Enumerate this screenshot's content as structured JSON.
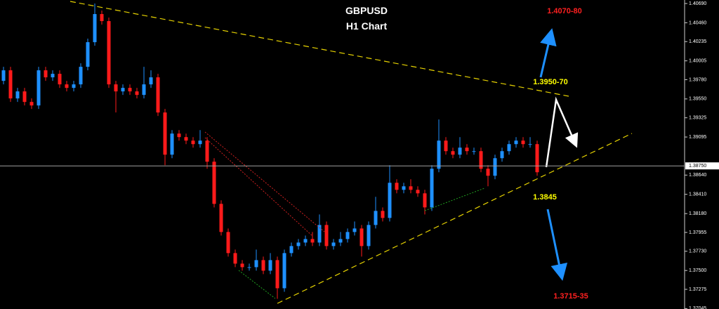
{
  "chart_data": {
    "type": "candlestick",
    "title": "GBPUSD",
    "subtitle": "H1 Chart",
    "up_color": "#1e90ff",
    "down_color": "#ff1a1a",
    "ylim": [
      1.3704,
      1.40732
    ],
    "yticks": [
      {
        "value": 1.4069,
        "label": "1.40690"
      },
      {
        "value": 1.4046,
        "label": "1.40460"
      },
      {
        "value": 1.40235,
        "label": "1.40235"
      },
      {
        "value": 1.40005,
        "label": "1.40005"
      },
      {
        "value": 1.3978,
        "label": "1.39780"
      },
      {
        "value": 1.3955,
        "label": "1.39550"
      },
      {
        "value": 1.39325,
        "label": "1.39325"
      },
      {
        "value": 1.39095,
        "label": "1.39095"
      },
      {
        "value": 1.3864,
        "label": "1.38640"
      },
      {
        "value": 1.3841,
        "label": "1.38410"
      },
      {
        "value": 1.3818,
        "label": "1.38180"
      },
      {
        "value": 1.37955,
        "label": "1.37955"
      },
      {
        "value": 1.3773,
        "label": "1.37730"
      },
      {
        "value": 1.375,
        "label": "1.37500"
      },
      {
        "value": 1.37275,
        "label": "1.37275"
      },
      {
        "value": 1.37045,
        "label": "1.37045"
      }
    ],
    "current_price": {
      "value": 1.3875,
      "label": "1.38750"
    },
    "annotations": [
      {
        "text": "1.4070-80",
        "color": "#ff2020"
      },
      {
        "text": "1.3950-70",
        "color": "#ffff00"
      },
      {
        "text": "1.3845",
        "color": "#ffff00"
      },
      {
        "text": "1.3715-35",
        "color": "#ff2020"
      }
    ],
    "open": [
      1.39766,
      1.39892,
      1.39556,
      1.3964,
      1.39514,
      1.39472,
      1.39892,
      1.39808,
      1.3985,
      1.39724,
      1.39682,
      1.39724,
      1.39934,
      1.40228,
      1.40564,
      1.4048,
      1.39724,
      1.3964,
      1.39682,
      1.3964,
      1.39598,
      1.39724,
      1.39808,
      1.39388,
      1.38884,
      1.39136,
      1.39094,
      1.39052,
      1.3901,
      1.39052,
      1.388,
      1.38296,
      1.3796,
      1.37708,
      1.37582,
      1.3754,
      1.3754,
      1.37624,
      1.37498,
      1.37624,
      1.37288,
      1.37708,
      1.37792,
      1.37834,
      1.37876,
      1.37834,
      1.38044,
      1.37792,
      1.37834,
      1.37876,
      1.3796,
      1.38002,
      1.37792,
      1.38044,
      1.38212,
      1.38128,
      1.38548,
      1.38464,
      1.38506,
      1.38464,
      1.38422,
      1.38254,
      1.38716,
      1.39052,
      1.38926,
      1.38884,
      1.38968,
      1.38926,
      1.38926,
      1.38716,
      1.38632,
      1.38842,
      1.38926,
      1.3901,
      1.39052,
      1.3901,
      1.3901
    ],
    "high": [
      1.39934,
      1.39934,
      1.39682,
      1.39682,
      1.39556,
      1.39934,
      1.39934,
      1.39892,
      1.39892,
      1.39766,
      1.39766,
      1.39976,
      1.4027,
      1.4069,
      1.40606,
      1.40522,
      1.39766,
      1.39724,
      1.39724,
      1.39682,
      1.39934,
      1.39892,
      1.3985,
      1.3943,
      1.39178,
      1.39178,
      1.39136,
      1.39094,
      1.39178,
      1.39094,
      1.38842,
      1.38338,
      1.38002,
      1.3775,
      1.37624,
      1.37582,
      1.3775,
      1.37666,
      1.37708,
      1.37666,
      1.3775,
      1.37834,
      1.37876,
      1.37918,
      1.3796,
      1.3817,
      1.38086,
      1.37876,
      1.3796,
      1.38002,
      1.38086,
      1.38044,
      1.38086,
      1.3838,
      1.38254,
      1.38758,
      1.3859,
      1.38548,
      1.3859,
      1.38506,
      1.38464,
      1.38758,
      1.39304,
      1.39094,
      1.38968,
      1.39094,
      1.3901,
      1.38968,
      1.38968,
      1.38758,
      1.38884,
      1.38968,
      1.39052,
      1.39094,
      1.39094,
      1.39094,
      1.39052
    ],
    "low": [
      1.39724,
      1.39514,
      1.39514,
      1.39472,
      1.3943,
      1.3943,
      1.39766,
      1.39766,
      1.39682,
      1.3964,
      1.3964,
      1.39682,
      1.39892,
      1.40186,
      1.40438,
      1.39682,
      1.39388,
      1.39598,
      1.39598,
      1.39556,
      1.39556,
      1.39682,
      1.39346,
      1.38758,
      1.38842,
      1.39052,
      1.3901,
      1.38968,
      1.38968,
      1.38716,
      1.38254,
      1.37918,
      1.37666,
      1.3754,
      1.37498,
      1.37498,
      1.37498,
      1.37456,
      1.37456,
      1.37162,
      1.37246,
      1.37666,
      1.3775,
      1.37792,
      1.37792,
      1.37792,
      1.3775,
      1.3775,
      1.37792,
      1.37834,
      1.37918,
      1.37666,
      1.3775,
      1.38002,
      1.38086,
      1.38086,
      1.38422,
      1.38422,
      1.38422,
      1.3838,
      1.3817,
      1.38212,
      1.38674,
      1.38884,
      1.38842,
      1.38842,
      1.38884,
      1.38884,
      1.38674,
      1.38506,
      1.3859,
      1.388,
      1.38884,
      1.38968,
      1.38968,
      1.38968,
      1.38632
    ],
    "close": [
      1.39892,
      1.39556,
      1.3964,
      1.39514,
      1.39472,
      1.39892,
      1.39808,
      1.3985,
      1.39724,
      1.39682,
      1.39724,
      1.39934,
      1.40228,
      1.40564,
      1.4048,
      1.39724,
      1.3964,
      1.39682,
      1.3964,
      1.39598,
      1.39724,
      1.39808,
      1.39388,
      1.38884,
      1.39136,
      1.39094,
      1.39052,
      1.3901,
      1.39052,
      1.388,
      1.38296,
      1.3796,
      1.37708,
      1.37582,
      1.3754,
      1.3754,
      1.37624,
      1.37498,
      1.37624,
      1.37288,
      1.37708,
      1.37792,
      1.37834,
      1.37876,
      1.37834,
      1.38044,
      1.37792,
      1.37834,
      1.37876,
      1.3796,
      1.38002,
      1.37792,
      1.38044,
      1.38212,
      1.38128,
      1.38548,
      1.38464,
      1.38506,
      1.38464,
      1.38422,
      1.38254,
      1.38716,
      1.39052,
      1.38926,
      1.38884,
      1.38968,
      1.38926,
      1.38926,
      1.38716,
      1.38632,
      1.38842,
      1.38926,
      1.3901,
      1.39052,
      1.3901,
      1.3901,
      1.38674
    ]
  }
}
